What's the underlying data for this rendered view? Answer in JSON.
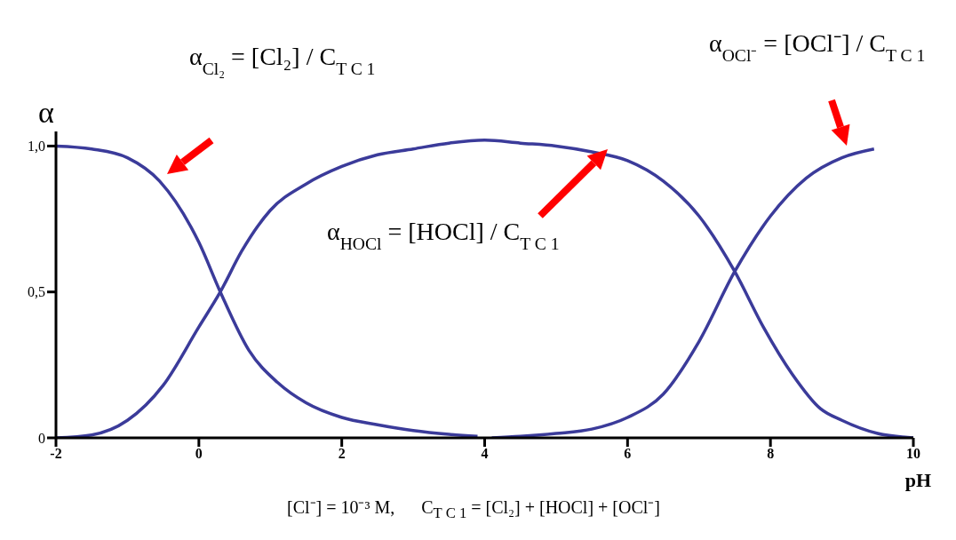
{
  "chart_data": {
    "type": "line",
    "xlabel": "pH",
    "ylabel": "α",
    "xlim": [
      -2,
      10
    ],
    "xticks": [
      -2,
      0,
      2,
      4,
      6,
      8,
      10
    ],
    "ylim": [
      0,
      1.05
    ],
    "yticks": [
      {
        "value": 0,
        "label": "0"
      },
      {
        "value": 0.5,
        "label": "0,5"
      },
      {
        "value": 1,
        "label": "1,0"
      }
    ],
    "marker": "none",
    "line_style": "solid",
    "series": [
      {
        "color": "#3b3b9a",
        "x": [
          -2,
          -1.5,
          -1,
          -0.55,
          0,
          0.3,
          0.7,
          1.1,
          1.5,
          2,
          2.5,
          3,
          3.5,
          3.9
        ],
        "values": [
          1.0,
          0.99,
          0.96,
          0.88,
          0.67,
          0.5,
          0.3,
          0.19,
          0.12,
          0.07,
          0.045,
          0.025,
          0.012,
          0.005
        ]
      },
      {
        "color": "#3b3b9a",
        "x": [
          -2,
          -1.5,
          -1,
          -0.5,
          0,
          0.3,
          0.6,
          1,
          1.5,
          2,
          2.5,
          3,
          3.5,
          4,
          4.5,
          5,
          5.5,
          6,
          6.5,
          7,
          7.5,
          7.9,
          8.3,
          8.7,
          9,
          9.5,
          10
        ],
        "values": [
          0,
          0.01,
          0.06,
          0.18,
          0.38,
          0.5,
          0.64,
          0.78,
          0.87,
          0.93,
          0.97,
          0.99,
          1.01,
          1.02,
          1.01,
          1.0,
          0.98,
          0.95,
          0.88,
          0.76,
          0.57,
          0.38,
          0.22,
          0.1,
          0.06,
          0.015,
          0
        ]
      },
      {
        "color": "#3b3b9a",
        "x": [
          4.1,
          4.5,
          5,
          5.5,
          6,
          6.5,
          7,
          7.5,
          8,
          8.5,
          9,
          9.45
        ],
        "values": [
          0,
          0.005,
          0.015,
          0.03,
          0.07,
          0.15,
          0.33,
          0.57,
          0.76,
          0.89,
          0.96,
          0.99
        ]
      }
    ],
    "annotations": [
      "α$_{Cl₂}$ = [Cl₂] / C$_{T C 1}$",
      "α$_{HOCl}$ = [HOCl] / C$_{T C 1}$",
      "α$_{OCl⁻}$ = [OCl⁻] / C$_{T C 1}$",
      "[Cl⁻] = 10⁻³ M,      C$_{T C 1}$ = [Cl₂] + [HOCl] + [OCl⁻]"
    ]
  }
}
